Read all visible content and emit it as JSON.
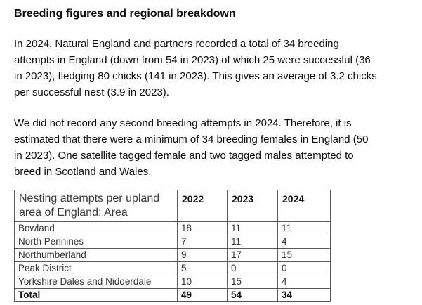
{
  "heading": "Breeding figures and regional breakdown",
  "paragraphs": [
    {
      "lines": [
        "In 2024, Natural England and partners recorded a total of 34 breeding",
        "attempts in England (down from 54 in 2023) of which 25 were successful (36",
        "in 2023), fledging 80 chicks (141 in 2023). This gives an average of 3.2 chicks",
        "per successful nest (3.9 in 2023)."
      ]
    },
    {
      "lines": [
        "We did not record any second breeding attempts in 2024. Therefore, it is",
        "estimated that there were a minimum of 34 breeding females in England (50",
        "in 2023). One satellite tagged female and two tagged males attempted to",
        "breed in Scotland and Wales."
      ]
    }
  ],
  "table": {
    "header": {
      "area_label": "Nesting attempts per upland area of England: Area",
      "years": [
        "2022",
        "2023",
        "2024"
      ]
    },
    "rows": [
      {
        "area": "Bowland",
        "values": [
          18,
          11,
          11
        ]
      },
      {
        "area": "North Pennines",
        "values": [
          7,
          11,
          4
        ]
      },
      {
        "area": "Northumberland",
        "values": [
          9,
          17,
          15
        ]
      },
      {
        "area": "Peak District",
        "values": [
          5,
          0,
          0
        ]
      },
      {
        "area": "Yorkshire Dales and Nidderdale",
        "values": [
          10,
          15,
          4
        ]
      }
    ],
    "total": {
      "label": "Total",
      "values": [
        49,
        54,
        34
      ]
    }
  },
  "colors": {
    "text": "#0b0c0c",
    "table_border": "#5a5a5a"
  }
}
